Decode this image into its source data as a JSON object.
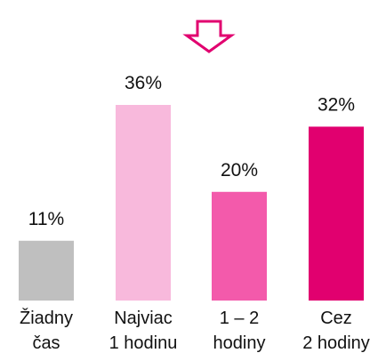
{
  "chart_data": {
    "type": "bar",
    "categories": [
      "Žiadny\nčas",
      "Najviac\n1 hodinu",
      "1 – 2\nhodiny",
      "Cez\n2 hodiny"
    ],
    "values": [
      11,
      36,
      20,
      32
    ],
    "value_labels": [
      "11%",
      "36%",
      "20%",
      "32%"
    ],
    "colors": [
      "#bfbfbf",
      "#f8b9dc",
      "#f35aab",
      "#e1006f"
    ],
    "ylim": [
      0,
      36
    ]
  }
}
